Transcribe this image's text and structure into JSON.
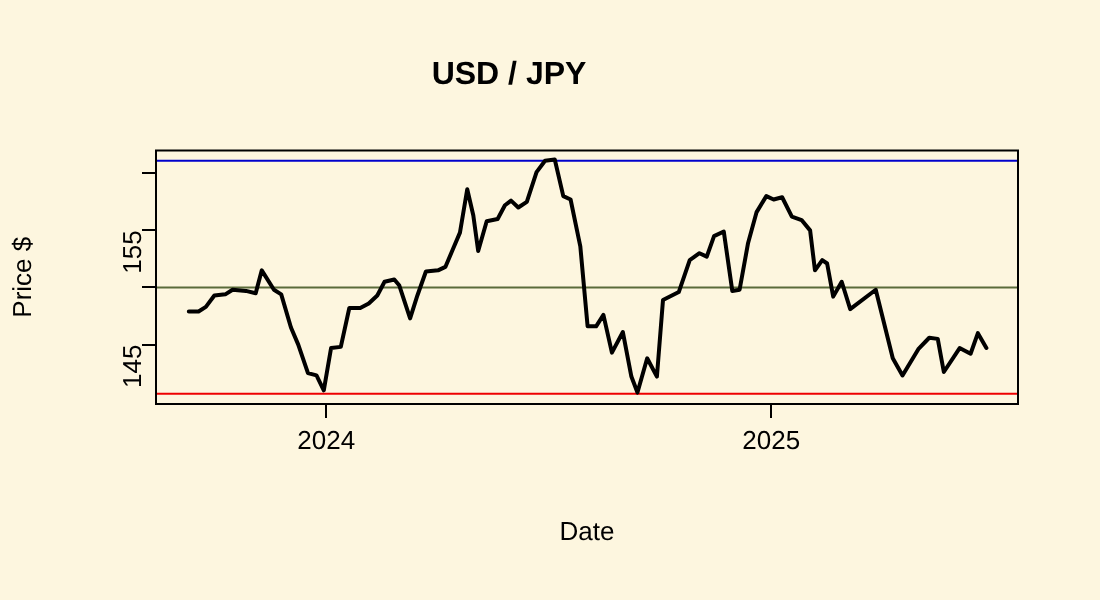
{
  "chart_data": {
    "type": "line",
    "title": "USD / JPY",
    "xlabel": "Date",
    "ylabel": "Price $",
    "x": [
      "2023-09-10",
      "2023-09-18",
      "2023-09-24",
      "2023-10-01",
      "2023-10-10",
      "2023-10-16",
      "2023-10-27",
      "2023-11-04",
      "2023-11-09",
      "2023-11-19",
      "2023-11-25",
      "2023-12-03",
      "2023-12-09",
      "2023-12-17",
      "2023-12-24",
      "2023-12-30",
      "2024-01-05",
      "2024-01-13",
      "2024-01-20",
      "2024-01-29",
      "2024-02-05",
      "2024-02-12",
      "2024-02-18",
      "2024-02-26",
      "2024-03-01",
      "2024-03-10",
      "2024-03-16",
      "2024-03-23",
      "2024-04-02",
      "2024-04-08",
      "2024-04-14",
      "2024-04-20",
      "2024-04-26",
      "2024-05-01",
      "2024-05-05",
      "2024-05-12",
      "2024-05-21",
      "2024-05-27",
      "2024-06-01",
      "2024-06-07",
      "2024-06-14",
      "2024-06-22",
      "2024-06-29",
      "2024-07-07",
      "2024-07-14",
      "2024-07-20",
      "2024-07-28",
      "2024-08-03",
      "2024-08-10",
      "2024-08-16",
      "2024-08-23",
      "2024-09-01",
      "2024-09-08",
      "2024-09-13",
      "2024-09-21",
      "2024-09-29",
      "2024-10-04",
      "2024-10-17",
      "2024-10-26",
      "2024-11-03",
      "2024-11-09",
      "2024-11-15",
      "2024-11-23",
      "2024-11-30",
      "2024-12-06",
      "2024-12-13",
      "2024-12-20",
      "2024-12-28",
      "2025-01-03",
      "2025-01-10",
      "2025-01-18",
      "2025-01-26",
      "2025-02-02",
      "2025-02-06",
      "2025-02-12",
      "2025-02-16",
      "2025-02-21",
      "2025-02-28",
      "2025-03-07",
      "2025-03-28",
      "2025-04-11",
      "2025-04-19",
      "2025-05-02",
      "2025-05-11",
      "2025-05-18",
      "2025-05-23",
      "2025-06-05",
      "2025-06-14",
      "2025-06-20",
      "2025-06-27"
    ],
    "series": [
      {
        "color": "#000000",
        "values": [
          147.9,
          147.9,
          148.3,
          149.3,
          149.4,
          149.8,
          149.7,
          149.5,
          151.5,
          149.8,
          149.4,
          146.5,
          145.0,
          142.5,
          142.3,
          141.0,
          144.7,
          144.8,
          148.2,
          148.2,
          148.6,
          149.3,
          150.5,
          150.7,
          150.2,
          147.3,
          149.3,
          151.4,
          151.5,
          151.8,
          153.3,
          154.8,
          158.6,
          156.3,
          153.2,
          155.8,
          156.0,
          157.2,
          157.6,
          157.0,
          157.5,
          160.1,
          161.1,
          161.2,
          158.0,
          157.7,
          153.6,
          146.6,
          146.6,
          147.6,
          144.3,
          146.1,
          142.2,
          140.8,
          143.8,
          142.2,
          148.9,
          149.6,
          152.4,
          153.0,
          152.7,
          154.5,
          154.9,
          149.7,
          149.8,
          153.9,
          156.6,
          158.0,
          157.7,
          157.9,
          156.2,
          155.9,
          155.0,
          151.5,
          152.4,
          152.1,
          149.2,
          150.5,
          148.1,
          149.8,
          143.8,
          142.3,
          144.6,
          145.6,
          145.5,
          142.6,
          144.7,
          144.2,
          146.0,
          144.7
        ]
      }
    ],
    "xlim": [
      "2023-08-14",
      "2025-07-23"
    ],
    "xticks": [
      {
        "value": "2024-01-01",
        "label": "2024"
      },
      {
        "value": "2025-01-01",
        "label": "2025"
      }
    ],
    "ylim": [
      139.8,
      162.0
    ],
    "yticks": [
      145,
      {
        "value": 150,
        "label": null
      },
      155,
      {
        "value": 160,
        "label": null
      }
    ],
    "ref_lines": [
      {
        "axis": "y",
        "value": 161.1,
        "color": "#0000cc"
      },
      {
        "axis": "y",
        "value": 140.7,
        "color": "#ee0000"
      },
      {
        "axis": "y",
        "value": 150.0,
        "color": "#5a6b3a"
      }
    ],
    "grid": false,
    "legend": false,
    "marker": "none",
    "line_style": "solid"
  }
}
